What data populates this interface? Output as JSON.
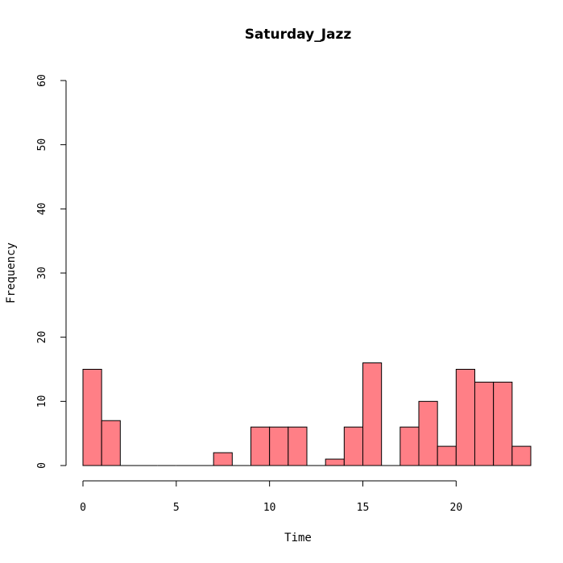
{
  "chart_data": {
    "type": "bar",
    "title": "Saturday_Jazz",
    "xlabel": "Time",
    "ylabel": "Frequency",
    "bar_color": "#FF7F86",
    "xlim": [
      0,
      24
    ],
    "ylim": [
      0,
      60
    ],
    "x_ticks": [
      0,
      5,
      10,
      15,
      20
    ],
    "y_ticks": [
      0,
      10,
      20,
      30,
      40,
      50,
      60
    ],
    "bins": [
      {
        "start": 0,
        "end": 1,
        "count": 15
      },
      {
        "start": 1,
        "end": 2,
        "count": 7
      },
      {
        "start": 2,
        "end": 3,
        "count": 0
      },
      {
        "start": 3,
        "end": 4,
        "count": 0
      },
      {
        "start": 4,
        "end": 5,
        "count": 0
      },
      {
        "start": 5,
        "end": 6,
        "count": 0
      },
      {
        "start": 6,
        "end": 7,
        "count": 0
      },
      {
        "start": 7,
        "end": 8,
        "count": 2
      },
      {
        "start": 8,
        "end": 9,
        "count": 0
      },
      {
        "start": 9,
        "end": 10,
        "count": 6
      },
      {
        "start": 10,
        "end": 11,
        "count": 6
      },
      {
        "start": 11,
        "end": 12,
        "count": 6
      },
      {
        "start": 12,
        "end": 13,
        "count": 0
      },
      {
        "start": 13,
        "end": 14,
        "count": 1
      },
      {
        "start": 14,
        "end": 15,
        "count": 6
      },
      {
        "start": 15,
        "end": 16,
        "count": 16
      },
      {
        "start": 16,
        "end": 17,
        "count": 0
      },
      {
        "start": 17,
        "end": 18,
        "count": 6
      },
      {
        "start": 18,
        "end": 19,
        "count": 10
      },
      {
        "start": 19,
        "end": 20,
        "count": 3
      },
      {
        "start": 20,
        "end": 21,
        "count": 15
      },
      {
        "start": 21,
        "end": 22,
        "count": 13
      },
      {
        "start": 22,
        "end": 23,
        "count": 13
      },
      {
        "start": 23,
        "end": 24,
        "count": 3
      }
    ]
  }
}
